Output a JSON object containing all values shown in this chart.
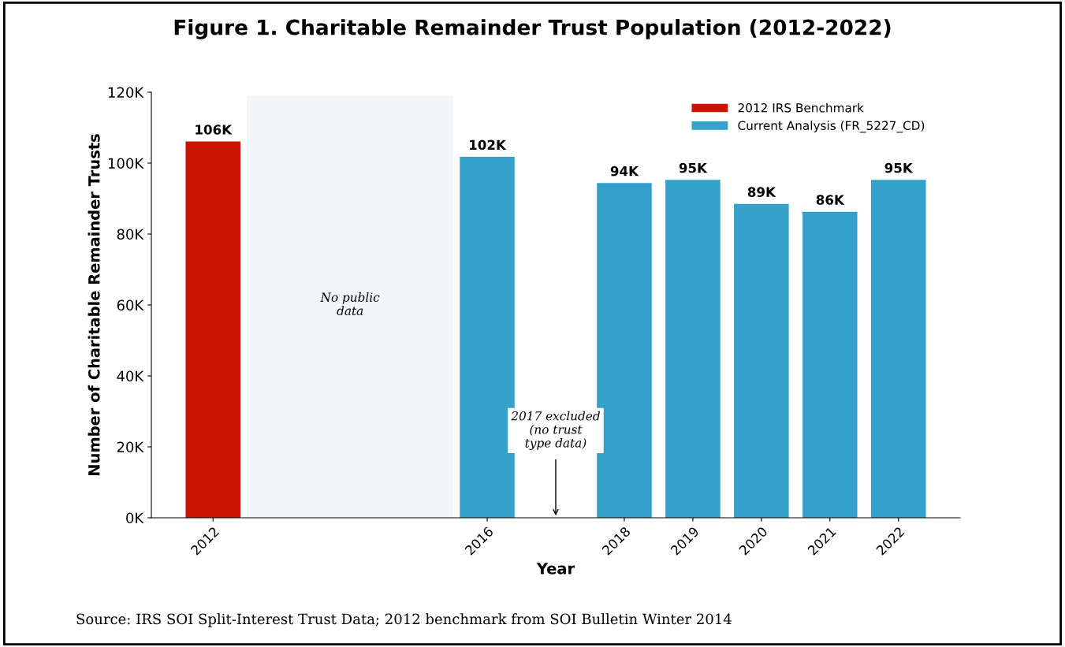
{
  "chart_data": {
    "type": "bar",
    "title": "Figure 1. Charitable Remainder Trust Population (2012-2022)",
    "xlabel": "Year",
    "ylabel": "Number of Charitable Remainder Trusts",
    "xlim": [
      2011.1,
      2022.9
    ],
    "xticks": [
      2012,
      2016,
      2018,
      2019,
      2020,
      2021,
      2022
    ],
    "ylim": [
      0,
      120000
    ],
    "yticks": [
      {
        "value": 0,
        "label": "0K"
      },
      {
        "value": 20000,
        "label": "20K"
      },
      {
        "value": 40000,
        "label": "40K"
      },
      {
        "value": 60000,
        "label": "60K"
      },
      {
        "value": 80000,
        "label": "80K"
      },
      {
        "value": 100000,
        "label": "100K"
      },
      {
        "value": 120000,
        "label": "120K"
      }
    ],
    "series": [
      {
        "name": "2012 IRS Benchmark",
        "color": "#c81400",
        "x": [
          2012
        ],
        "values": [
          106100
        ],
        "value_labels": [
          "106K"
        ]
      },
      {
        "name": "Current Analysis (FR_5227_CD)",
        "color": "#33a1c9",
        "x": [
          2016,
          2018,
          2019,
          2020,
          2021,
          2022
        ],
        "values": [
          101800,
          94400,
          95300,
          88500,
          86300,
          95300
        ],
        "value_labels": [
          "102K",
          "94K",
          "95K",
          "89K",
          "86K",
          "95K"
        ]
      }
    ],
    "bands": [
      {
        "axis": "x",
        "from": 2012.5,
        "to": 2015.5,
        "label": "No public\ndata",
        "color": "#f3f6f8"
      }
    ],
    "annotations": [
      "2017 excluded\n(no trust\ntype data)",
      "Source: IRS SOI Split-Interest Trust Data; 2012 benchmark from SOI Bulletin Winter 2014"
    ],
    "legend": "top right",
    "grid": false
  }
}
